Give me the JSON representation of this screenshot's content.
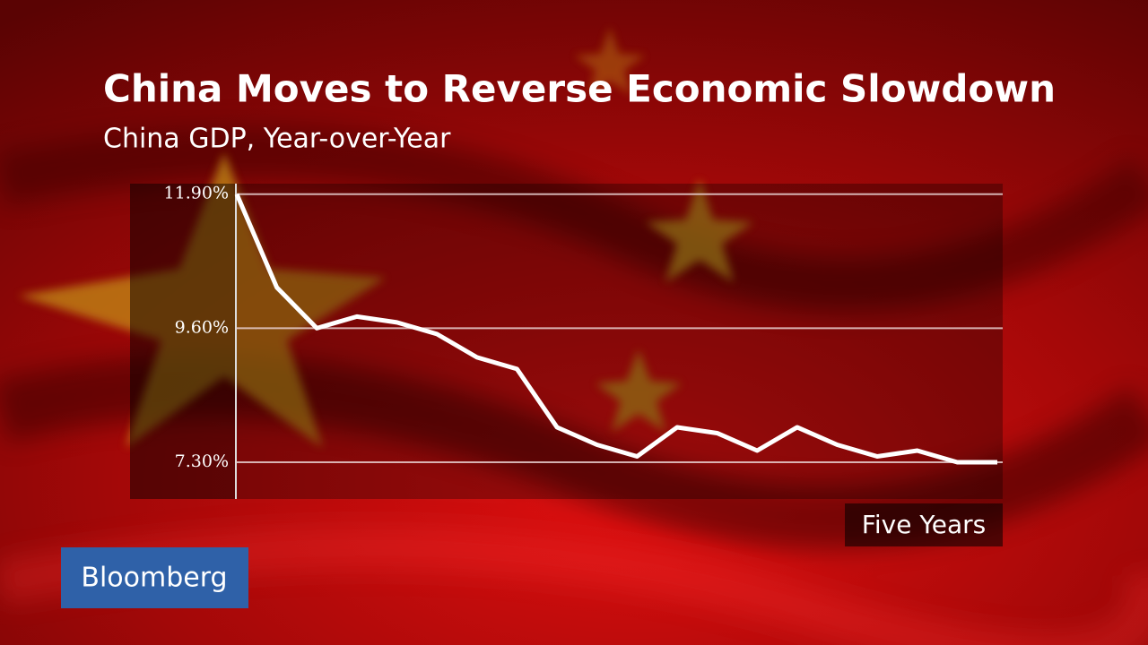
{
  "chart_data": {
    "type": "line",
    "title": "China Moves to Reverse Economic Slowdown",
    "subtitle": "China GDP, Year-over-Year",
    "x_label": "Five Years",
    "values": [
      11.9,
      10.3,
      9.6,
      9.8,
      9.7,
      9.5,
      9.1,
      8.9,
      7.9,
      7.6,
      7.4,
      7.9,
      7.8,
      7.5,
      7.9,
      7.6,
      7.4,
      7.5,
      7.3,
      7.3
    ],
    "color": "#ffffff",
    "ylim": [
      6.67,
      12.08
    ],
    "yticks": [
      {
        "value": 7.3,
        "label": "7.30%"
      },
      {
        "value": 9.6,
        "label": "9.60%"
      },
      {
        "value": 11.9,
        "label": "11.90%"
      }
    ],
    "grid": true
  },
  "logo": "Bloomberg"
}
